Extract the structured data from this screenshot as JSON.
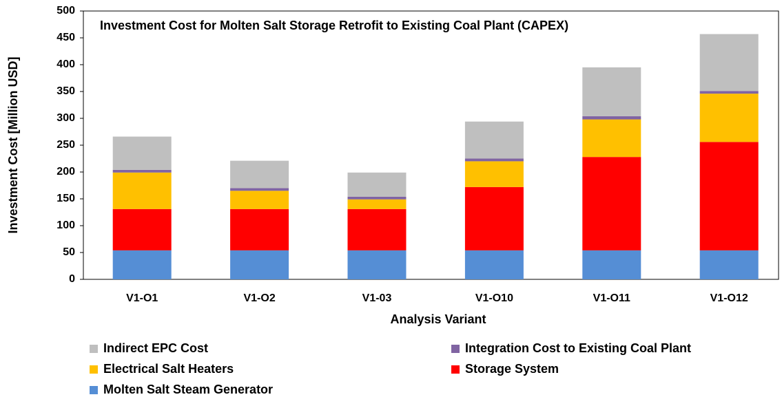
{
  "chart_data": {
    "type": "stacked_bar",
    "title": "Investment Cost for Molten Salt Storage Retrofit to Existing Coal Plant (CAPEX)",
    "x_label": "Analysis Variant",
    "y_label": "Investment Cost [Million USD]",
    "categories": [
      "V1-O1",
      "V1-O2",
      "V1-03",
      "V1-O10",
      "V1-O11",
      "V1-O12"
    ],
    "series": [
      {
        "name": "Molten Salt Steam Generator",
        "color": "#558ed5",
        "values": [
          54,
          54,
          54,
          54,
          54,
          54
        ]
      },
      {
        "name": "Storage System",
        "color": "#ff0000",
        "values": [
          77,
          77,
          77,
          118,
          174,
          202
        ]
      },
      {
        "name": "Electrical Salt Heaters",
        "color": "#ffc000",
        "values": [
          68,
          34,
          18,
          48,
          70,
          90
        ]
      },
      {
        "name": "Integration Cost to Existing Coal Plant",
        "color": "#8064a2",
        "values": [
          5,
          5,
          5,
          5,
          6,
          5
        ]
      },
      {
        "name": "Indirect EPC Cost",
        "color": "#bfbfbf",
        "values": [
          62,
          51,
          45,
          69,
          91,
          106
        ]
      }
    ],
    "ylim": [
      0,
      500
    ],
    "yticks": [
      0,
      50,
      100,
      150,
      200,
      250,
      300,
      350,
      400,
      450,
      500
    ],
    "grid": false
  }
}
